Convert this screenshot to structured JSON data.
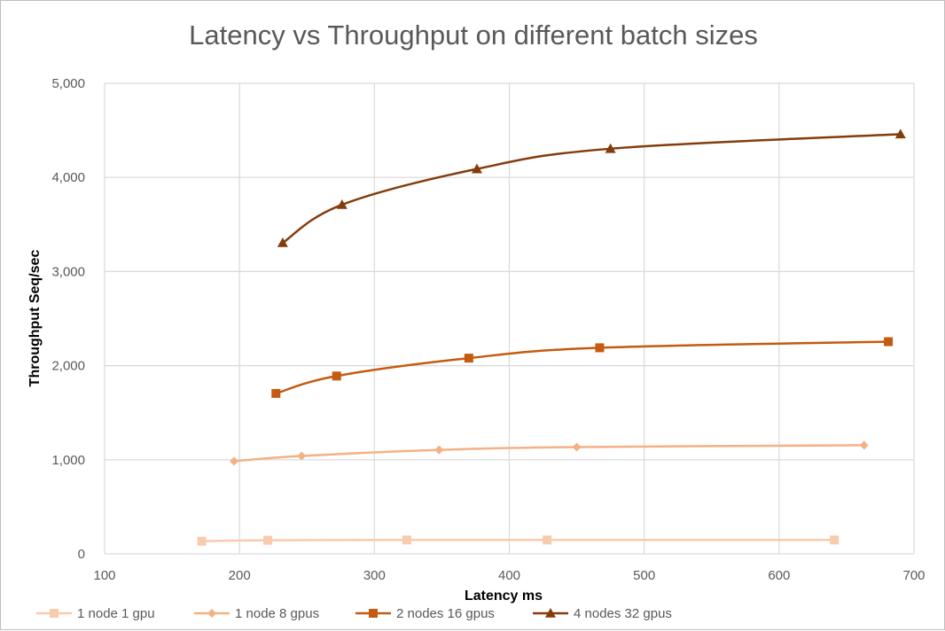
{
  "chart_data": {
    "type": "line",
    "title": "Latency vs Throughput on different batch sizes",
    "xlabel": "Latency ms",
    "ylabel": "Throughput Seq/sec",
    "xlim": [
      100,
      700
    ],
    "ylim": [
      0,
      5000
    ],
    "x_ticks": [
      100,
      200,
      300,
      400,
      500,
      600,
      700
    ],
    "y_ticks": [
      0,
      1000,
      2000,
      3000,
      4000,
      5000
    ],
    "y_tick_labels": [
      "0",
      "1,000",
      "2,000",
      "3,000",
      "4,000",
      "5,000"
    ],
    "grid": true,
    "legend_position": "bottom",
    "series": [
      {
        "name": "1 node 1 gpu",
        "color": "#F8CBAD",
        "marker": "square",
        "points": [
          {
            "x": 172,
            "y": 135
          },
          {
            "x": 221,
            "y": 145
          },
          {
            "x": 324,
            "y": 148
          },
          {
            "x": 428,
            "y": 148
          },
          {
            "x": 641,
            "y": 148
          }
        ]
      },
      {
        "name": "1 node 8 gpus",
        "color": "#F4B183",
        "marker": "diamond",
        "points": [
          {
            "x": 196,
            "y": 985
          },
          {
            "x": 246,
            "y": 1040
          },
          {
            "x": 348,
            "y": 1105
          },
          {
            "x": 450,
            "y": 1135
          },
          {
            "x": 663,
            "y": 1155
          }
        ]
      },
      {
        "name": "2 nodes 16 gpus",
        "color": "#C55A11",
        "marker": "square",
        "points": [
          {
            "x": 227,
            "y": 1705
          },
          {
            "x": 272,
            "y": 1890
          },
          {
            "x": 370,
            "y": 2080
          },
          {
            "x": 467,
            "y": 2190
          },
          {
            "x": 681,
            "y": 2255
          }
        ]
      },
      {
        "name": "4 nodes 32 gpus",
        "color": "#843C0C",
        "marker": "triangle",
        "points": [
          {
            "x": 232,
            "y": 3305
          },
          {
            "x": 276,
            "y": 3710
          },
          {
            "x": 376,
            "y": 4090
          },
          {
            "x": 475,
            "y": 4305
          },
          {
            "x": 690,
            "y": 4460
          }
        ]
      }
    ]
  }
}
